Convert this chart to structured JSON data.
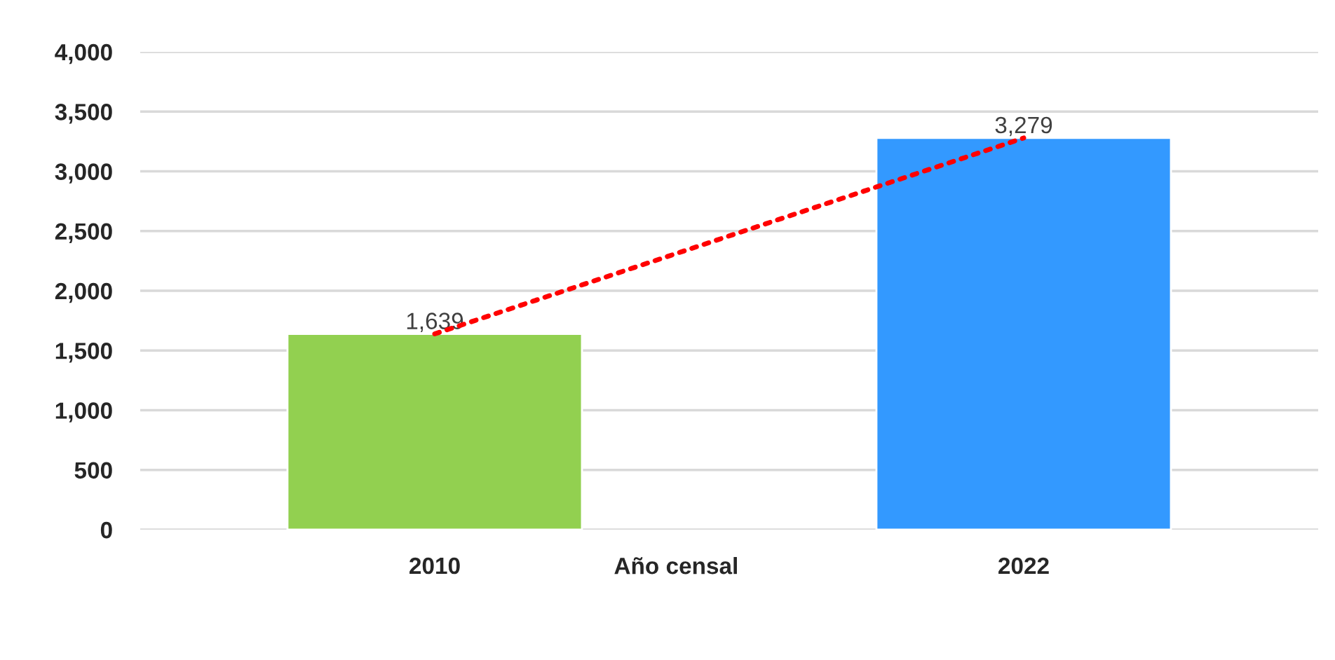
{
  "chart_data": {
    "type": "bar",
    "xlabel": "Año censal",
    "categories": [
      "2010",
      "2022"
    ],
    "series": [
      {
        "colors": [
          "#92d050",
          "#3399ff"
        ],
        "values": [
          1639,
          3279
        ],
        "value_labels": [
          "1,639",
          "3,279"
        ]
      },
      {
        "type": "line",
        "color": "#ff0000",
        "values": [
          1639,
          3279
        ],
        "line_style": "dotted",
        "marker": "none"
      }
    ],
    "ylim": [
      0,
      4000
    ],
    "yticks": [
      {
        "value": 0,
        "label": "0"
      },
      {
        "value": 500,
        "label": "500"
      },
      {
        "value": 1000,
        "label": "1,000"
      },
      {
        "value": 1500,
        "label": "1,500"
      },
      {
        "value": 2000,
        "label": "2,000"
      },
      {
        "value": 2500,
        "label": "2,500"
      },
      {
        "value": 3000,
        "label": "3,000"
      },
      {
        "value": 3500,
        "label": "3,500"
      },
      {
        "value": 4000,
        "label": "4,000"
      }
    ],
    "grid": "y",
    "legend": false
  }
}
